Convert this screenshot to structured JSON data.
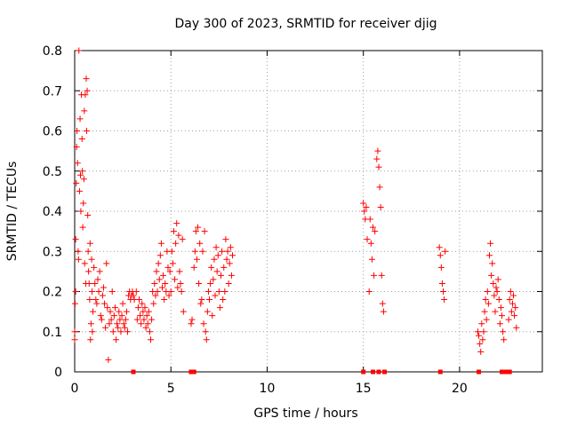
{
  "chart_data": {
    "type": "scatter",
    "title": "Day 300 of 2023, SRMTID for receiver djig",
    "xlabel": "GPS time / hours",
    "ylabel": "SRMTID / TECUs",
    "xlim": [
      0,
      24.3
    ],
    "ylim": [
      0,
      0.8
    ],
    "x_ticks": [
      0,
      5,
      10,
      15,
      20
    ],
    "x_tick_labels": [
      "0",
      "5",
      "10",
      "15",
      "20"
    ],
    "y_ticks": [
      0,
      0.1,
      0.2,
      0.3,
      0.4,
      0.5,
      0.6,
      0.7,
      0.8
    ],
    "y_tick_labels": [
      "0",
      "0.1",
      "0.2",
      "0.3",
      "0.4",
      "0.5",
      "0.6",
      "0.7",
      "0.8"
    ],
    "grid": true,
    "marker": "+",
    "color": "#ff0000",
    "series": [
      {
        "name": "SRMTID",
        "points": [
          [
            0.0,
            0.1
          ],
          [
            0.0,
            0.08
          ],
          [
            0.02,
            0.17
          ],
          [
            0.05,
            0.2
          ],
          [
            0.05,
            0.33
          ],
          [
            0.08,
            0.47
          ],
          [
            0.1,
            0.56
          ],
          [
            0.12,
            0.6
          ],
          [
            0.15,
            0.52
          ],
          [
            0.18,
            0.3
          ],
          [
            0.2,
            0.28
          ],
          [
            0.22,
            0.8
          ],
          [
            0.25,
            0.45
          ],
          [
            0.28,
            0.63
          ],
          [
            0.3,
            0.49
          ],
          [
            0.32,
            0.4
          ],
          [
            0.35,
            0.69
          ],
          [
            0.38,
            0.58
          ],
          [
            0.4,
            0.5
          ],
          [
            0.42,
            0.36
          ],
          [
            0.45,
            0.42
          ],
          [
            0.48,
            0.48
          ],
          [
            0.5,
            0.65
          ],
          [
            0.52,
            0.27
          ],
          [
            0.55,
            0.69
          ],
          [
            0.58,
            0.22
          ],
          [
            0.6,
            0.73
          ],
          [
            0.62,
            0.6
          ],
          [
            0.65,
            0.7
          ],
          [
            0.68,
            0.39
          ],
          [
            0.7,
            0.3
          ],
          [
            0.72,
            0.25
          ],
          [
            0.75,
            0.22
          ],
          [
            0.78,
            0.18
          ],
          [
            0.8,
            0.32
          ],
          [
            0.82,
            0.08
          ],
          [
            0.85,
            0.12
          ],
          [
            0.88,
            0.28
          ],
          [
            0.9,
            0.2
          ],
          [
            0.92,
            0.1
          ],
          [
            0.95,
            0.15
          ],
          [
            1.0,
            0.26
          ],
          [
            1.05,
            0.22
          ],
          [
            1.1,
            0.18
          ],
          [
            1.15,
            0.17
          ],
          [
            1.2,
            0.23
          ],
          [
            1.25,
            0.2
          ],
          [
            1.3,
            0.25
          ],
          [
            1.35,
            0.14
          ],
          [
            1.4,
            0.13
          ],
          [
            1.45,
            0.19
          ],
          [
            1.5,
            0.21
          ],
          [
            1.55,
            0.17
          ],
          [
            1.6,
            0.11
          ],
          [
            1.65,
            0.27
          ],
          [
            1.7,
            0.16
          ],
          [
            1.75,
            0.03
          ],
          [
            1.8,
            0.12
          ],
          [
            1.85,
            0.15
          ],
          [
            1.9,
            0.13
          ],
          [
            1.95,
            0.2
          ],
          [
            2.0,
            0.1
          ],
          [
            2.05,
            0.14
          ],
          [
            2.1,
            0.16
          ],
          [
            2.15,
            0.08
          ],
          [
            2.2,
            0.12
          ],
          [
            2.25,
            0.11
          ],
          [
            2.3,
            0.15
          ],
          [
            2.35,
            0.13
          ],
          [
            2.4,
            0.1
          ],
          [
            2.45,
            0.14
          ],
          [
            2.5,
            0.17
          ],
          [
            2.55,
            0.12
          ],
          [
            2.6,
            0.11
          ],
          [
            2.65,
            0.13
          ],
          [
            2.7,
            0.15
          ],
          [
            2.75,
            0.1
          ],
          [
            2.8,
            0.19
          ],
          [
            2.85,
            0.2
          ],
          [
            2.9,
            0.18
          ],
          [
            2.95,
            0.19
          ],
          [
            3.0,
            0.2
          ],
          [
            3.05,
            0.19
          ],
          [
            3.1,
            0.18
          ],
          [
            3.2,
            0.2
          ],
          [
            3.25,
            0.13
          ],
          [
            3.3,
            0.16
          ],
          [
            3.35,
            0.18
          ],
          [
            3.4,
            0.14
          ],
          [
            3.45,
            0.12
          ],
          [
            3.5,
            0.17
          ],
          [
            3.55,
            0.15
          ],
          [
            3.6,
            0.13
          ],
          [
            3.65,
            0.16
          ],
          [
            3.7,
            0.11
          ],
          [
            3.75,
            0.14
          ],
          [
            3.8,
            0.12
          ],
          [
            3.85,
            0.15
          ],
          [
            3.9,
            0.1
          ],
          [
            3.95,
            0.08
          ],
          [
            4.0,
            0.13
          ],
          [
            4.05,
            0.2
          ],
          [
            4.1,
            0.17
          ],
          [
            4.15,
            0.22
          ],
          [
            4.2,
            0.19
          ],
          [
            4.25,
            0.25
          ],
          [
            4.3,
            0.2
          ],
          [
            4.35,
            0.27
          ],
          [
            4.4,
            0.23
          ],
          [
            4.45,
            0.29
          ],
          [
            4.5,
            0.32
          ],
          [
            4.55,
            0.21
          ],
          [
            4.6,
            0.24
          ],
          [
            4.65,
            0.18
          ],
          [
            4.7,
            0.22
          ],
          [
            4.75,
            0.2
          ],
          [
            4.8,
            0.3
          ],
          [
            4.85,
            0.26
          ],
          [
            4.9,
            0.19
          ],
          [
            4.95,
            0.25
          ],
          [
            5.0,
            0.2
          ],
          [
            5.05,
            0.3
          ],
          [
            5.1,
            0.27
          ],
          [
            5.15,
            0.35
          ],
          [
            5.2,
            0.23
          ],
          [
            5.25,
            0.32
          ],
          [
            5.3,
            0.37
          ],
          [
            5.35,
            0.21
          ],
          [
            5.4,
            0.34
          ],
          [
            5.45,
            0.25
          ],
          [
            5.5,
            0.22
          ],
          [
            5.55,
            0.2
          ],
          [
            5.6,
            0.33
          ],
          [
            5.65,
            0.15
          ],
          [
            6.05,
            0.12
          ],
          [
            6.1,
            0.13
          ],
          [
            6.2,
            0.26
          ],
          [
            6.25,
            0.3
          ],
          [
            6.3,
            0.35
          ],
          [
            6.35,
            0.28
          ],
          [
            6.4,
            0.36
          ],
          [
            6.45,
            0.22
          ],
          [
            6.5,
            0.32
          ],
          [
            6.55,
            0.17
          ],
          [
            6.6,
            0.18
          ],
          [
            6.65,
            0.3
          ],
          [
            6.7,
            0.12
          ],
          [
            6.75,
            0.35
          ],
          [
            6.8,
            0.1
          ],
          [
            6.85,
            0.08
          ],
          [
            6.9,
            0.15
          ],
          [
            6.95,
            0.2
          ],
          [
            7.0,
            0.18
          ],
          [
            7.05,
            0.22
          ],
          [
            7.1,
            0.26
          ],
          [
            7.15,
            0.14
          ],
          [
            7.2,
            0.23
          ],
          [
            7.25,
            0.28
          ],
          [
            7.3,
            0.19
          ],
          [
            7.35,
            0.31
          ],
          [
            7.4,
            0.25
          ],
          [
            7.45,
            0.29
          ],
          [
            7.5,
            0.2
          ],
          [
            7.55,
            0.16
          ],
          [
            7.6,
            0.24
          ],
          [
            7.65,
            0.3
          ],
          [
            7.7,
            0.18
          ],
          [
            7.75,
            0.26
          ],
          [
            7.8,
            0.2
          ],
          [
            7.85,
            0.33
          ],
          [
            7.9,
            0.28
          ],
          [
            7.95,
            0.3
          ],
          [
            8.0,
            0.22
          ],
          [
            8.05,
            0.27
          ],
          [
            8.1,
            0.31
          ],
          [
            8.15,
            0.24
          ],
          [
            8.2,
            0.29
          ],
          [
            15.0,
            0.42
          ],
          [
            15.05,
            0.4
          ],
          [
            15.1,
            0.38
          ],
          [
            15.15,
            0.41
          ],
          [
            15.2,
            0.33
          ],
          [
            15.3,
            0.2
          ],
          [
            15.35,
            0.38
          ],
          [
            15.4,
            0.32
          ],
          [
            15.45,
            0.28
          ],
          [
            15.5,
            0.36
          ],
          [
            15.55,
            0.24
          ],
          [
            15.6,
            0.35
          ],
          [
            15.7,
            0.53
          ],
          [
            15.75,
            0.55
          ],
          [
            15.8,
            0.51
          ],
          [
            15.85,
            0.46
          ],
          [
            15.9,
            0.41
          ],
          [
            15.95,
            0.24
          ],
          [
            16.0,
            0.17
          ],
          [
            16.05,
            0.15
          ],
          [
            18.95,
            0.31
          ],
          [
            19.0,
            0.29
          ],
          [
            19.05,
            0.26
          ],
          [
            19.1,
            0.22
          ],
          [
            19.15,
            0.2
          ],
          [
            19.2,
            0.18
          ],
          [
            19.25,
            0.3
          ],
          [
            20.95,
            0.1
          ],
          [
            21.0,
            0.09
          ],
          [
            21.05,
            0.07
          ],
          [
            21.1,
            0.05
          ],
          [
            21.15,
            0.12
          ],
          [
            21.2,
            0.08
          ],
          [
            21.25,
            0.1
          ],
          [
            21.3,
            0.15
          ],
          [
            21.35,
            0.18
          ],
          [
            21.4,
            0.13
          ],
          [
            21.45,
            0.2
          ],
          [
            21.5,
            0.17
          ],
          [
            21.55,
            0.29
          ],
          [
            21.6,
            0.32
          ],
          [
            21.65,
            0.24
          ],
          [
            21.7,
            0.27
          ],
          [
            21.75,
            0.22
          ],
          [
            21.8,
            0.19
          ],
          [
            21.85,
            0.15
          ],
          [
            21.9,
            0.21
          ],
          [
            21.95,
            0.2
          ],
          [
            22.0,
            0.23
          ],
          [
            22.05,
            0.18
          ],
          [
            22.1,
            0.12
          ],
          [
            22.15,
            0.16
          ],
          [
            22.2,
            0.14
          ],
          [
            22.25,
            0.1
          ],
          [
            22.3,
            0.08
          ],
          [
            22.55,
            0.13
          ],
          [
            22.6,
            0.18
          ],
          [
            22.65,
            0.2
          ],
          [
            22.7,
            0.15
          ],
          [
            22.75,
            0.17
          ],
          [
            22.8,
            0.19
          ],
          [
            22.85,
            0.14
          ],
          [
            22.9,
            0.16
          ],
          [
            22.95,
            0.11
          ]
        ]
      }
    ],
    "baseline_markers": {
      "name": "zero-level markers",
      "x": [
        3.05,
        6.05,
        6.15,
        6.2,
        15.0,
        15.5,
        15.8,
        16.1,
        19.0,
        21.0,
        22.2,
        22.3,
        22.4,
        22.5,
        22.6
      ],
      "y": 0
    }
  }
}
